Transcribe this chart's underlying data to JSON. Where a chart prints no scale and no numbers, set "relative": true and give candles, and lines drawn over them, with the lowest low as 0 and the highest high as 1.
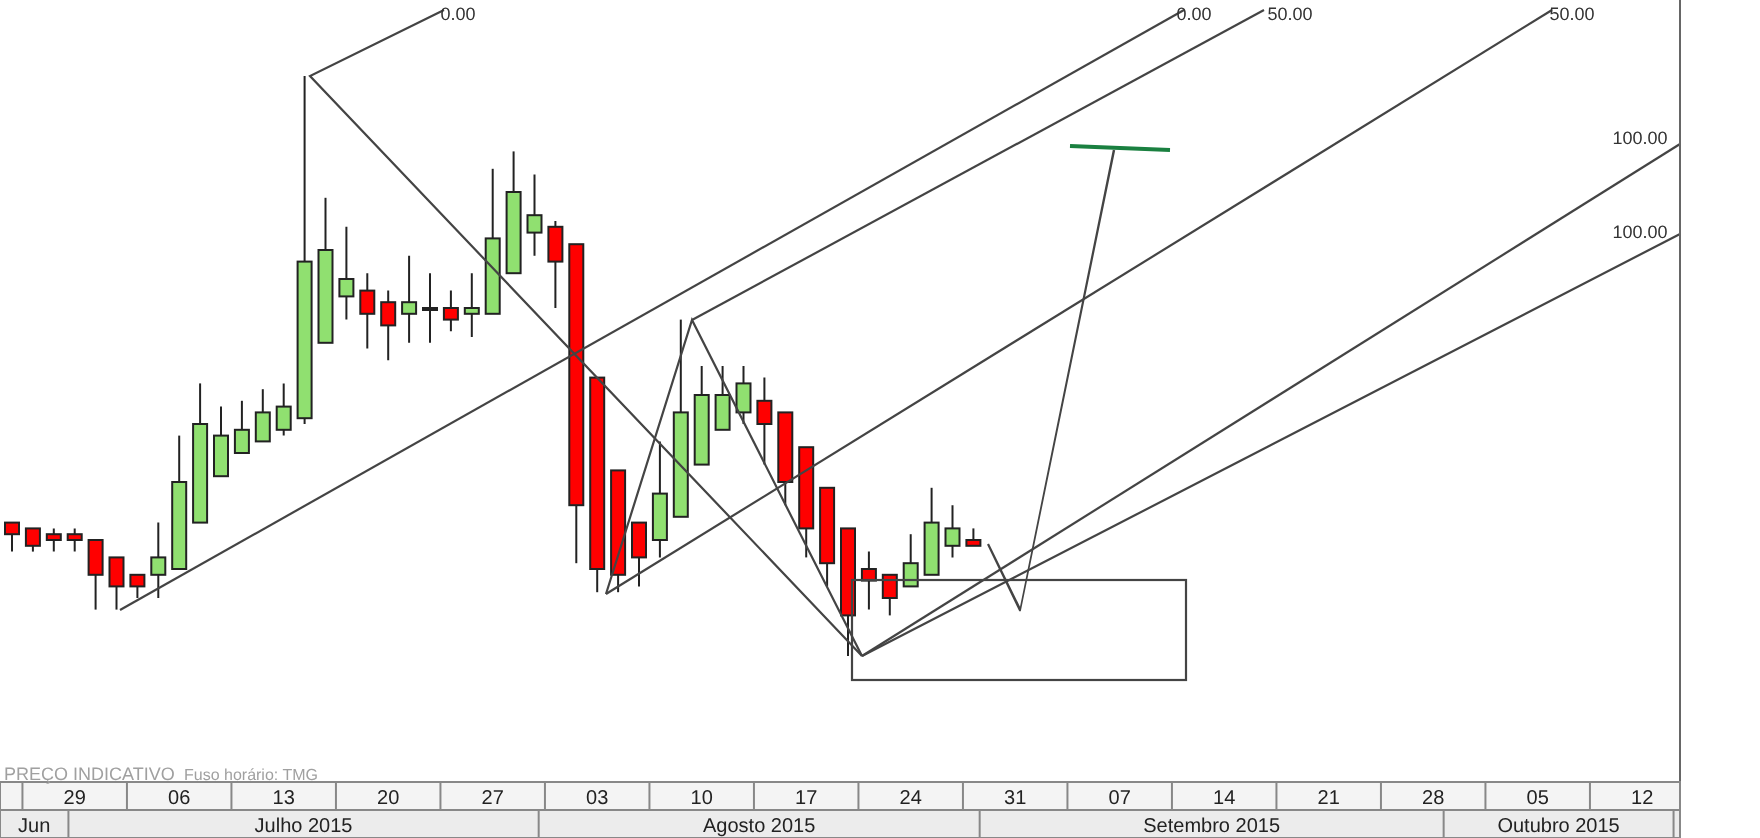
{
  "chart_data": {
    "type": "candlestick",
    "relative": true,
    "grid": false,
    "categories": [
      null,
      null,
      null,
      "29",
      null,
      null,
      null,
      null,
      "06",
      null,
      null,
      null,
      null,
      "13",
      null,
      null,
      null,
      null,
      "20",
      null,
      null,
      null,
      null,
      "27",
      null,
      null,
      null,
      null,
      "03",
      null,
      null,
      null,
      null,
      "10",
      null,
      null,
      null,
      null,
      "17",
      null,
      null,
      null,
      null,
      "24",
      null,
      null,
      null,
      null,
      "31",
      null,
      null,
      null,
      null,
      "07",
      null,
      null,
      null,
      null,
      "14",
      null,
      null,
      null,
      null,
      "21",
      null,
      null,
      null,
      null,
      "28",
      null,
      null,
      null,
      null,
      "05",
      null,
      null,
      null,
      null,
      "12",
      null
    ],
    "ohlc": [
      [
        0.23,
        0.23,
        0.18,
        0.21
      ],
      [
        0.22,
        0.22,
        0.18,
        0.19
      ],
      [
        0.21,
        0.22,
        0.18,
        0.2
      ],
      [
        0.21,
        0.22,
        0.18,
        0.2
      ],
      [
        0.2,
        0.2,
        0.08,
        0.14
      ],
      [
        0.17,
        0.17,
        0.08,
        0.12
      ],
      [
        0.14,
        0.14,
        0.1,
        0.12
      ],
      [
        0.14,
        0.23,
        0.1,
        0.17
      ],
      [
        0.15,
        0.38,
        0.15,
        0.3
      ],
      [
        0.23,
        0.47,
        0.23,
        0.4
      ],
      [
        0.31,
        0.43,
        0.31,
        0.38
      ],
      [
        0.35,
        0.44,
        0.35,
        0.39
      ],
      [
        0.37,
        0.46,
        0.37,
        0.42
      ],
      [
        0.39,
        0.47,
        0.38,
        0.43
      ],
      [
        0.41,
        1.0,
        0.4,
        0.68
      ],
      [
        0.54,
        0.79,
        0.54,
        0.7
      ],
      [
        0.62,
        0.74,
        0.58,
        0.65
      ],
      [
        0.63,
        0.66,
        0.53,
        0.59
      ],
      [
        0.61,
        0.63,
        0.51,
        0.57
      ],
      [
        0.59,
        0.69,
        0.54,
        0.61
      ],
      [
        0.6,
        0.66,
        0.54,
        0.6
      ],
      [
        0.6,
        0.63,
        0.56,
        0.58
      ],
      [
        0.59,
        0.66,
        0.55,
        0.6
      ],
      [
        0.59,
        0.84,
        0.59,
        0.72
      ],
      [
        0.66,
        0.87,
        0.66,
        0.8
      ],
      [
        0.73,
        0.83,
        0.69,
        0.76
      ],
      [
        0.74,
        0.75,
        0.6,
        0.68
      ],
      [
        0.71,
        0.71,
        0.16,
        0.26
      ],
      [
        0.48,
        0.48,
        0.11,
        0.15
      ],
      [
        0.32,
        0.32,
        0.11,
        0.14
      ],
      [
        0.23,
        0.23,
        0.12,
        0.17
      ],
      [
        0.2,
        0.37,
        0.17,
        0.28
      ],
      [
        0.24,
        0.58,
        0.24,
        0.42
      ],
      [
        0.33,
        0.5,
        0.33,
        0.45
      ],
      [
        0.39,
        0.5,
        0.39,
        0.45
      ],
      [
        0.42,
        0.5,
        0.4,
        0.47
      ],
      [
        0.44,
        0.48,
        0.33,
        0.4
      ],
      [
        0.42,
        0.42,
        0.26,
        0.3
      ],
      [
        0.36,
        0.36,
        0.17,
        0.22
      ],
      [
        0.29,
        0.29,
        0.12,
        0.16
      ],
      [
        0.22,
        0.22,
        0.0,
        0.07
      ],
      [
        0.15,
        0.18,
        0.08,
        0.13
      ],
      [
        0.14,
        0.14,
        0.07,
        0.1
      ],
      [
        0.12,
        0.21,
        0.12,
        0.16
      ],
      [
        0.14,
        0.29,
        0.14,
        0.23
      ],
      [
        0.19,
        0.26,
        0.17,
        0.22
      ],
      [
        0.2,
        0.22,
        0.19,
        0.19
      ],
      null,
      null,
      null,
      null,
      null,
      null,
      null,
      null,
      null,
      null,
      null,
      null,
      null,
      null,
      null,
      null,
      null,
      null,
      null,
      null,
      null,
      null,
      null,
      null,
      null,
      null,
      null,
      null,
      null,
      null,
      null,
      null,
      null
    ],
    "colors": [
      "#ff0000",
      "#ff0000",
      "#ff0000",
      "#ff0000",
      "#ff0000",
      "#ff0000",
      "#ff0000",
      "#90e070",
      "#90e070",
      "#90e070",
      "#90e070",
      "#90e070",
      "#90e070",
      "#90e070",
      "#90e070",
      "#90e070",
      "#90e070",
      "#ff0000",
      "#ff0000",
      "#90e070",
      "#90e070",
      "#ff0000",
      "#90e070",
      "#90e070",
      "#90e070",
      "#90e070",
      "#ff0000",
      "#ff0000",
      "#ff0000",
      "#ff0000",
      "#ff0000",
      "#90e070",
      "#90e070",
      "#90e070",
      "#90e070",
      "#90e070",
      "#ff0000",
      "#ff0000",
      "#ff0000",
      "#ff0000",
      "#ff0000",
      "#ff0000",
      "#ff0000",
      "#90e070",
      "#90e070",
      "#90e070",
      "#ff0000",
      null,
      null,
      null,
      null,
      null,
      null,
      null,
      null,
      null,
      null,
      null,
      null,
      null,
      null,
      null,
      null,
      null,
      null,
      null,
      null,
      null,
      null,
      null,
      null,
      null,
      null,
      null,
      null,
      null,
      null,
      null,
      null,
      null
    ],
    "annotations": [
      "PREÇO INDICATIVO",
      "Fuso horário: TMG",
      "Jun",
      "Julho 2015",
      "Agosto 2015",
      "Setembro 2015",
      "Outubro 2015",
      "0.00",
      "0.00",
      "50.00",
      "50.00",
      "100.00",
      "100.00"
    ]
  }
}
